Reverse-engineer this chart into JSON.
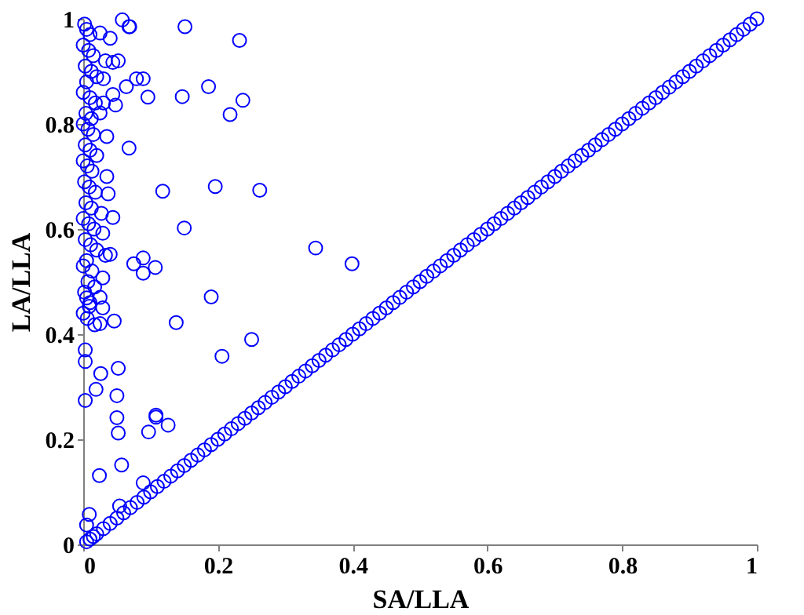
{
  "chart_data": {
    "type": "scatter",
    "xlabel": "SA/LLA",
    "ylabel": "LA/LLA",
    "xlim": [
      0,
      1
    ],
    "ylim": [
      0,
      1
    ],
    "xticks": [
      0,
      0.2,
      0.4,
      0.6,
      0.8,
      1
    ],
    "yticks": [
      0,
      0.2,
      0.4,
      0.6,
      0.8,
      1
    ],
    "grid": false,
    "marker": "circle",
    "series": [
      {
        "color": "#0000ff",
        "x": [
          0.058,
          0.069,
          0.151,
          0.232,
          0.068,
          0.079,
          0.089,
          0.096,
          0.147,
          0.186,
          0.237,
          0.218,
          0.068,
          0.118,
          0.196,
          0.262,
          0.15,
          0.345,
          0.399,
          0.075,
          0.089,
          0.089,
          0.107,
          0.19,
          0.138,
          0.25,
          0.206,
          0.108,
          0.026,
          0.052,
          0.019,
          0.05,
          0.003,
          0.05,
          0.052,
          0.108,
          0.097,
          0.126,
          0.057,
          0.024,
          0.089,
          0.054,
          0.009,
          0.005,
          0.046,
          0.005,
          0.003,
          0.003,
          0.017,
          0.025,
          0.009,
          0.029,
          0.025,
          0.04,
          0.033,
          0.044,
          0.052,
          0.064,
          0.03,
          0.044,
          0.048,
          0.025,
          0.035,
          0.037,
          0.044,
          0.029,
          0.04,
          0.029,
          0.002,
          0.005,
          0.01,
          0.0,
          0.008,
          0.015,
          0.003,
          0.012,
          0.02,
          0.005,
          0.0,
          0.01,
          0.018,
          0.004,
          0.012,
          0.0,
          0.007,
          0.015,
          0.003,
          0.01,
          0.02,
          0.0,
          0.006,
          0.013,
          0.002,
          0.009,
          0.018,
          0.004,
          0.012,
          0.0,
          0.008,
          0.016,
          0.003,
          0.011,
          0.02,
          0.005,
          0.0,
          0.013,
          0.007,
          0.017,
          0.002,
          0.01,
          0.0,
          0.006,
          0.03,
          0.035,
          0.027,
          0.033,
          0.025,
          0.005,
          0.01,
          0.015,
          0.02,
          0.03,
          0.04,
          0.05,
          0.06,
          0.07,
          0.08,
          0.09,
          0.1,
          0.11,
          0.12,
          0.13,
          0.14,
          0.15,
          0.16,
          0.17,
          0.18,
          0.19,
          0.2,
          0.21,
          0.22,
          0.23,
          0.24,
          0.25,
          0.26,
          0.27,
          0.28,
          0.29,
          0.3,
          0.31,
          0.32,
          0.33,
          0.34,
          0.35,
          0.36,
          0.37,
          0.38,
          0.39,
          0.4,
          0.41,
          0.42,
          0.43,
          0.44,
          0.45,
          0.46,
          0.47,
          0.48,
          0.49,
          0.5,
          0.51,
          0.52,
          0.53,
          0.54,
          0.55,
          0.56,
          0.57,
          0.58,
          0.59,
          0.6,
          0.61,
          0.62,
          0.63,
          0.64,
          0.65,
          0.66,
          0.67,
          0.68,
          0.69,
          0.7,
          0.71,
          0.72,
          0.73,
          0.74,
          0.75,
          0.76,
          0.77,
          0.78,
          0.79,
          0.8,
          0.81,
          0.82,
          0.83,
          0.84,
          0.85,
          0.86,
          0.87,
          0.88,
          0.89,
          0.9,
          0.91,
          0.92,
          0.93,
          0.94,
          0.95,
          0.96,
          0.97,
          0.98,
          0.99,
          1.0
        ],
        "values": [
          0.998,
          0.985,
          0.985,
          0.959,
          0.985,
          0.886,
          0.886,
          0.851,
          0.852,
          0.871,
          0.845,
          0.818,
          0.754,
          0.672,
          0.681,
          0.674,
          0.602,
          0.564,
          0.534,
          0.534,
          0.545,
          0.516,
          0.527,
          0.471,
          0.422,
          0.39,
          0.358,
          0.246,
          0.325,
          0.335,
          0.295,
          0.283,
          0.274,
          0.241,
          0.212,
          0.242,
          0.214,
          0.227,
          0.151,
          0.131,
          0.117,
          0.073,
          0.057,
          0.037,
          0.425,
          0.469,
          0.37,
          0.348,
          0.418,
          0.42,
          0.453,
          0.45,
          0.973,
          0.963,
          0.92,
          0.917,
          0.92,
          0.871,
          0.886,
          0.856,
          0.836,
          0.821,
          0.776,
          0.667,
          0.622,
          0.592,
          0.552,
          0.507,
          0.99,
          0.98,
          0.97,
          0.95,
          0.94,
          0.93,
          0.91,
          0.9,
          0.89,
          0.88,
          0.86,
          0.85,
          0.84,
          0.82,
          0.81,
          0.8,
          0.79,
          0.78,
          0.76,
          0.75,
          0.74,
          0.73,
          0.72,
          0.71,
          0.69,
          0.68,
          0.67,
          0.65,
          0.64,
          0.62,
          0.61,
          0.6,
          0.58,
          0.57,
          0.56,
          0.54,
          0.53,
          0.52,
          0.5,
          0.49,
          0.48,
          0.46,
          0.44,
          0.43,
          0.84,
          0.7,
          0.63,
          0.55,
          0.47,
          0.005,
          0.01,
          0.015,
          0.02,
          0.03,
          0.04,
          0.05,
          0.06,
          0.07,
          0.08,
          0.09,
          0.1,
          0.11,
          0.12,
          0.13,
          0.14,
          0.15,
          0.16,
          0.17,
          0.18,
          0.19,
          0.2,
          0.21,
          0.22,
          0.23,
          0.24,
          0.25,
          0.26,
          0.27,
          0.28,
          0.29,
          0.3,
          0.31,
          0.32,
          0.33,
          0.34,
          0.35,
          0.36,
          0.37,
          0.38,
          0.39,
          0.4,
          0.41,
          0.42,
          0.43,
          0.44,
          0.45,
          0.46,
          0.47,
          0.48,
          0.49,
          0.5,
          0.51,
          0.52,
          0.53,
          0.54,
          0.55,
          0.56,
          0.57,
          0.58,
          0.59,
          0.6,
          0.61,
          0.62,
          0.63,
          0.64,
          0.65,
          0.66,
          0.67,
          0.68,
          0.69,
          0.7,
          0.71,
          0.72,
          0.73,
          0.74,
          0.75,
          0.76,
          0.77,
          0.78,
          0.79,
          0.8,
          0.81,
          0.82,
          0.83,
          0.84,
          0.85,
          0.86,
          0.87,
          0.88,
          0.89,
          0.9,
          0.91,
          0.92,
          0.93,
          0.94,
          0.95,
          0.96,
          0.97,
          0.98,
          0.99,
          1.0
        ]
      }
    ]
  }
}
